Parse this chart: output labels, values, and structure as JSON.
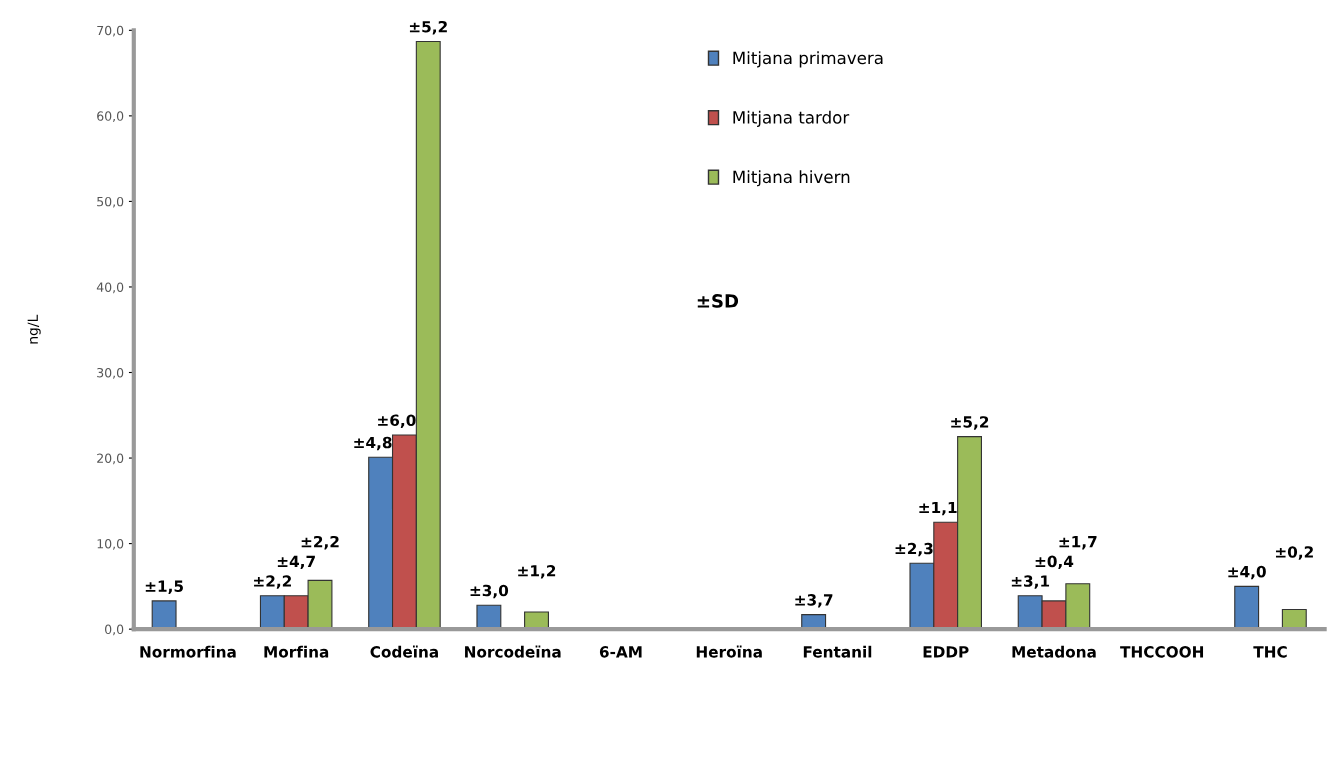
{
  "chart_data": {
    "type": "bar",
    "ylabel": "ng/L",
    "categories": [
      "Normorfina",
      "Morfina",
      "Codeïna",
      "Norcodeïna",
      "6-AM",
      "Heroïna",
      "Fentanil",
      "EDDP",
      "Metadona",
      "THCCOOH",
      "THC"
    ],
    "series": [
      {
        "name": "Mitjana primavera",
        "color": "#4f81bd",
        "values": [
          3.3,
          3.9,
          20.1,
          2.8,
          null,
          null,
          1.7,
          7.7,
          3.9,
          null,
          5.0
        ]
      },
      {
        "name": "Mitjana tardor",
        "color": "#c0504d",
        "values": [
          null,
          3.9,
          22.7,
          null,
          null,
          null,
          null,
          12.5,
          3.3,
          null,
          null
        ]
      },
      {
        "name": "Mitjana hivern",
        "color": "#9bbb59",
        "values": [
          null,
          5.7,
          68.7,
          2.0,
          null,
          null,
          null,
          22.5,
          5.3,
          null,
          2.3
        ]
      }
    ],
    "ylim": [
      0,
      70
    ],
    "yticks": [
      {
        "value": 0,
        "label": "0,0"
      },
      {
        "value": 10,
        "label": "10,0"
      },
      {
        "value": 20,
        "label": "20,0"
      },
      {
        "value": 30,
        "label": "30,0"
      },
      {
        "value": 40,
        "label": "40,0"
      },
      {
        "value": 50,
        "label": "50,0"
      },
      {
        "value": 60,
        "label": "60,0"
      },
      {
        "value": 70,
        "label": "70,0"
      }
    ],
    "grid": false,
    "legend": "top",
    "annotations": [
      "±1,5",
      "±2,2",
      "±4,7",
      "±2,2",
      "±4,8",
      "±6,0",
      "±5,2",
      "±3,0",
      "±1,2",
      "±3,7",
      "±2,3",
      "±1,1",
      "±5,2",
      "±3,1",
      "±0,4",
      "±1,7",
      "±4,0",
      "±0,2",
      "±SD"
    ]
  }
}
